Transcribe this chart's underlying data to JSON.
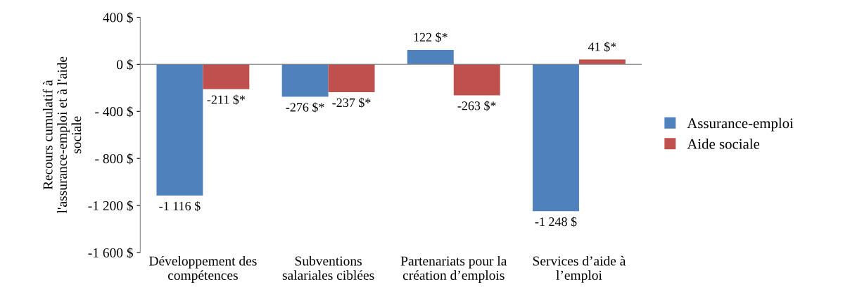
{
  "chart_data": {
    "type": "bar",
    "ylabel": "Recours cumulatif à\nl'assurance-emploi et à l'aide\nsociale",
    "categories": [
      "Développement des\ncompétences",
      "Subventions\nsalariales ciblées",
      "Partenariats pour la\ncréation d’emplois",
      "Services d’aide à\nl’emploi"
    ],
    "series": [
      {
        "name": "Assurance-emploi",
        "color": "#4f81bd",
        "values": [
          -1116,
          -276,
          122,
          -1248
        ],
        "value_labels": [
          "-1 116 $",
          "-276 $*",
          "122 $*",
          "-1 248 $"
        ]
      },
      {
        "name": "Aide sociale",
        "color": "#c0504d",
        "values": [
          -211,
          -237,
          -263,
          41
        ],
        "value_labels": [
          "-211 $*",
          "-237 $*",
          "-263 $*",
          "41 $*"
        ]
      }
    ],
    "ylim": [
      -1600,
      400
    ],
    "yticks": [
      {
        "value": 400,
        "label": "400 $"
      },
      {
        "value": 0,
        "label": "0 $"
      },
      {
        "value": -400,
        "label": "- 400 $"
      },
      {
        "value": -800,
        "label": "- 800 $"
      },
      {
        "value": -1200,
        "label": "-1 200 $"
      },
      {
        "value": -1600,
        "label": "-1 600 $"
      }
    ],
    "legend": "right"
  }
}
